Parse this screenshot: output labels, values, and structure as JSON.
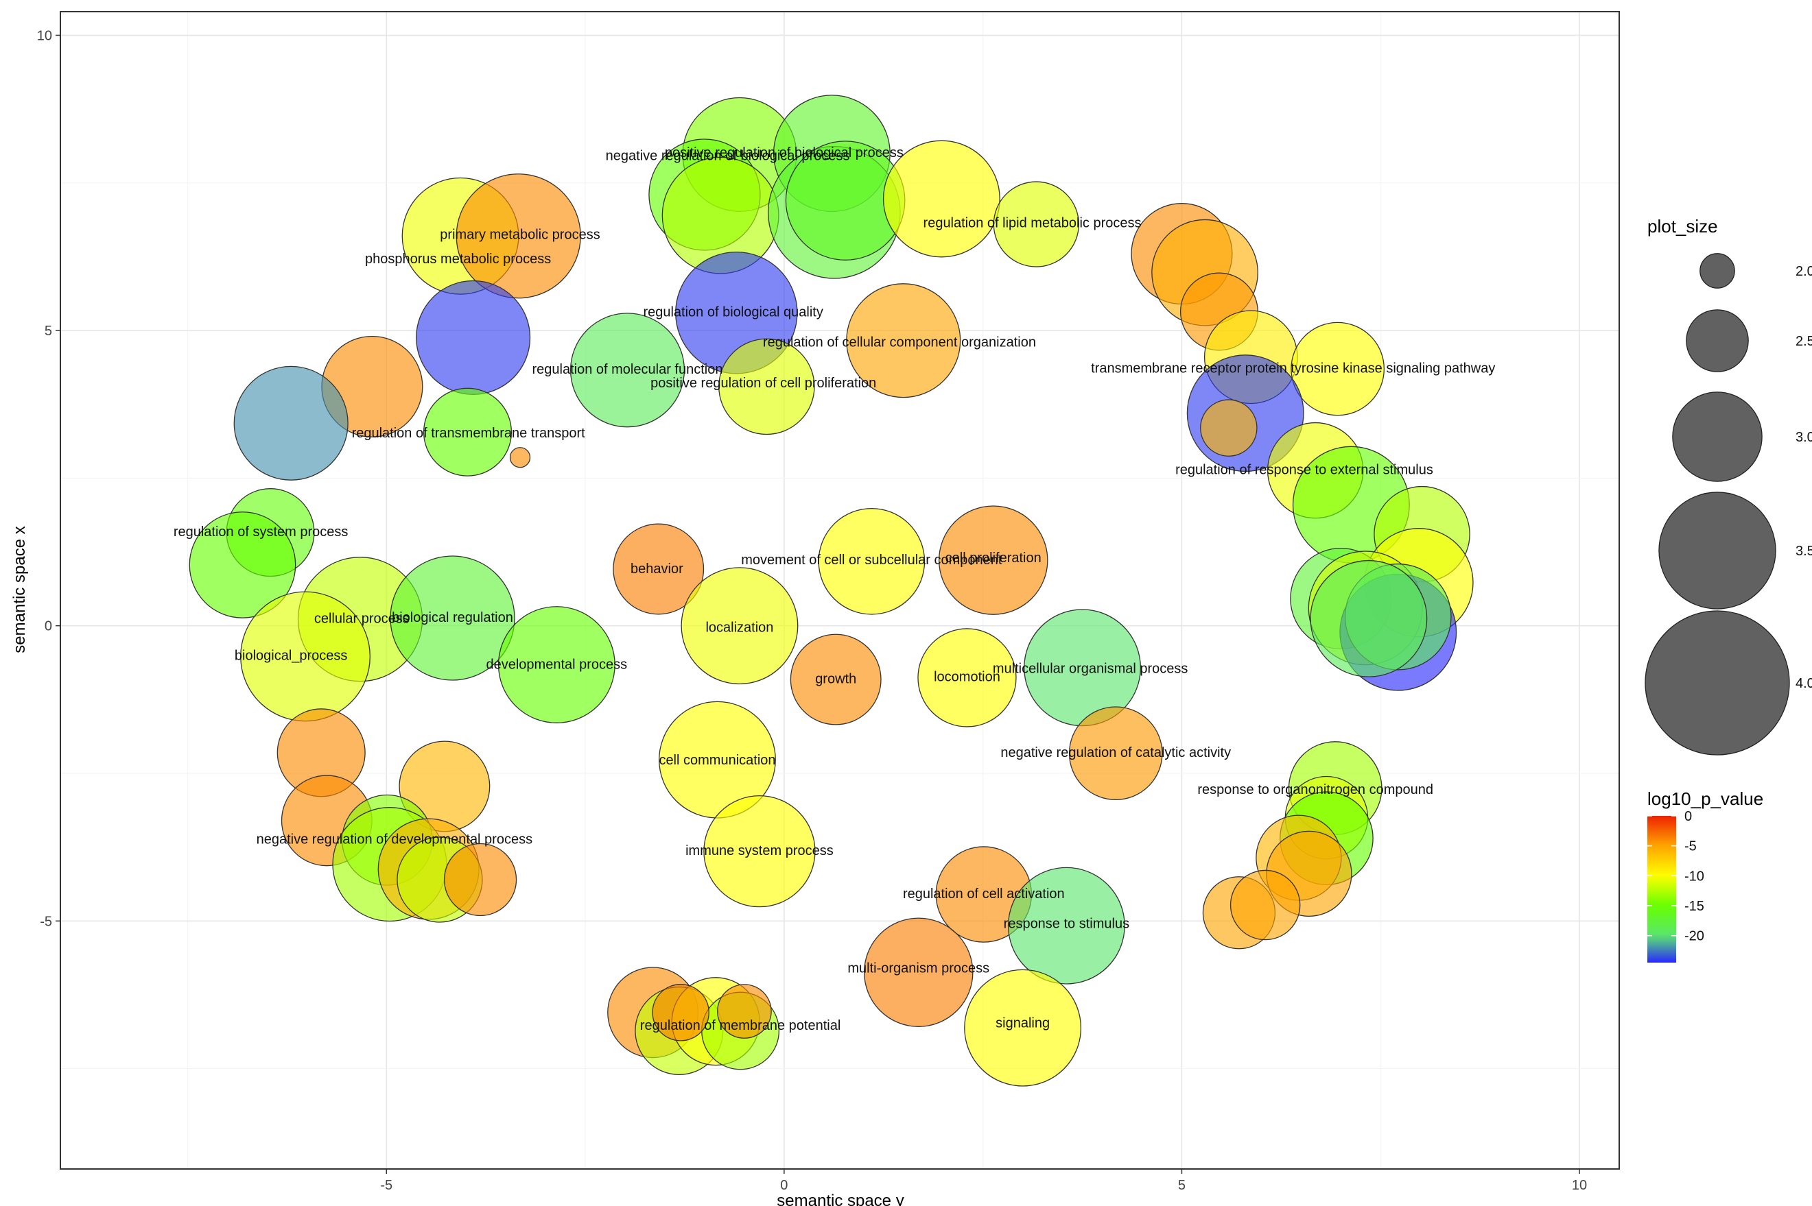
{
  "chart_data": {
    "type": "scatter",
    "xlabel": "semantic space y",
    "ylabel": "semantic space x",
    "xlim": [
      -9.1,
      10.5
    ],
    "ylim": [
      -9.2,
      10.4
    ],
    "xticks": [
      -5,
      0,
      5,
      10
    ],
    "yticks": [
      -5,
      0,
      5,
      10
    ],
    "legend_size": {
      "title": "plot_size",
      "items": [
        {
          "label": "2.0",
          "value": 2.0
        },
        {
          "label": "2.5",
          "value": 2.5
        },
        {
          "label": "3.0",
          "value": 3.0
        },
        {
          "label": "3.5",
          "value": 3.5
        },
        {
          "label": "4.0",
          "value": 4.0
        }
      ]
    },
    "legend_color": {
      "title": "log10_p_value",
      "ticks": [
        {
          "label": "0",
          "value": 0
        },
        {
          "label": "-5",
          "value": -5
        },
        {
          "label": "-10",
          "value": -10
        },
        {
          "label": "-15",
          "value": -15
        },
        {
          "label": "-20",
          "value": -20
        }
      ],
      "range": [
        -24.5,
        0
      ]
    },
    "points": [
      {
        "label": "",
        "x": -0.56,
        "y": 7.98,
        "size": 3.55,
        "p": -14
      },
      {
        "label": "",
        "x": 0.6,
        "y": 8.0,
        "size": 3.6,
        "p": -17
      },
      {
        "label": "",
        "x": -1.0,
        "y": 7.3,
        "size": 3.5,
        "p": -15
      },
      {
        "label": "",
        "x": -0.8,
        "y": 6.95,
        "size": 3.6,
        "p": -12.5
      },
      {
        "label": "",
        "x": 0.63,
        "y": 7.0,
        "size": 3.9,
        "p": -17.5
      },
      {
        "label": "",
        "x": 0.77,
        "y": 7.2,
        "size": 3.65,
        "p": -16.5
      },
      {
        "label": "",
        "x": 1.98,
        "y": 7.23,
        "size": 3.6,
        "p": -10
      },
      {
        "label": "",
        "x": 3.17,
        "y": 6.8,
        "size": 3.0,
        "p": -11
      },
      {
        "label": "",
        "x": -4.07,
        "y": 6.6,
        "size": 3.6,
        "p": -10.5
      },
      {
        "label": "",
        "x": -3.34,
        "y": 6.6,
        "size": 3.75,
        "p": -4
      },
      {
        "label": "",
        "x": -0.6,
        "y": 5.3,
        "size": 3.7,
        "p": -24
      },
      {
        "label": "",
        "x": -3.91,
        "y": 4.88,
        "size": 3.55,
        "p": -24
      },
      {
        "label": "",
        "x": 1.5,
        "y": 4.83,
        "size": 3.55,
        "p": -5
      },
      {
        "label": "",
        "x": -1.97,
        "y": 4.33,
        "size": 3.55,
        "p": -19
      },
      {
        "label": "",
        "x": -0.22,
        "y": 4.05,
        "size": 3.2,
        "p": -11
      },
      {
        "label": "",
        "x": -5.18,
        "y": 4.05,
        "size": 3.3,
        "p": -4
      },
      {
        "label": "",
        "x": -6.2,
        "y": 3.43,
        "size": 3.55,
        "p": -22
      },
      {
        "label": "",
        "x": -3.98,
        "y": 3.28,
        "size": 3.05,
        "p": -15
      },
      {
        "label": "",
        "x": -3.32,
        "y": 2.85,
        "size": 1.75,
        "p": -4
      },
      {
        "label": "",
        "x": -6.46,
        "y": 1.58,
        "size": 3.05,
        "p": -15.5
      },
      {
        "label": "",
        "x": -6.81,
        "y": 1.03,
        "size": 3.4,
        "p": -15
      },
      {
        "label": "",
        "x": -1.58,
        "y": 0.96,
        "size": 3.1,
        "p": -3.5
      },
      {
        "label": "",
        "x": 1.1,
        "y": 1.09,
        "size": 3.4,
        "p": -10
      },
      {
        "label": "",
        "x": 2.63,
        "y": 1.11,
        "size": 3.45,
        "p": -4
      },
      {
        "label": "",
        "x": -5.33,
        "y": 0.11,
        "size": 3.75,
        "p": -12
      },
      {
        "label": "",
        "x": -4.17,
        "y": 0.13,
        "size": 3.75,
        "p": -17.5
      },
      {
        "label": "",
        "x": -6.02,
        "y": -0.52,
        "size": 3.85,
        "p": -11
      },
      {
        "label": "",
        "x": -2.86,
        "y": -0.66,
        "size": 3.6,
        "p": -15
      },
      {
        "label": "",
        "x": -0.56,
        "y": 0.0,
        "size": 3.6,
        "p": -10.5
      },
      {
        "label": "",
        "x": 0.65,
        "y": -0.91,
        "size": 3.1,
        "p": -4
      },
      {
        "label": "",
        "x": 2.3,
        "y": -0.88,
        "size": 3.25,
        "p": -10
      },
      {
        "label": "",
        "x": 3.75,
        "y": -0.71,
        "size": 3.6,
        "p": -20
      },
      {
        "label": "",
        "x": 4.17,
        "y": -2.16,
        "size": 3.15,
        "p": -4.5
      },
      {
        "label": "",
        "x": -0.84,
        "y": -2.27,
        "size": 3.6,
        "p": -10
      },
      {
        "label": "",
        "x": -0.31,
        "y": -3.82,
        "size": 3.5,
        "p": -10
      },
      {
        "label": "",
        "x": 2.51,
        "y": -4.55,
        "size": 3.2,
        "p": -4
      },
      {
        "label": "",
        "x": 3.55,
        "y": -5.08,
        "size": 3.6,
        "p": -20
      },
      {
        "label": "",
        "x": 1.69,
        "y": -5.87,
        "size": 3.45,
        "p": -3.5
      },
      {
        "label": "",
        "x": 3.0,
        "y": -6.81,
        "size": 3.6,
        "p": -10
      },
      {
        "label": "",
        "x": -1.65,
        "y": -6.55,
        "size": 3.1,
        "p": -4
      },
      {
        "label": "",
        "x": -1.32,
        "y": -6.86,
        "size": 3.05,
        "p": -12
      },
      {
        "label": "",
        "x": -0.86,
        "y": -6.7,
        "size": 3.05,
        "p": -10
      },
      {
        "label": "",
        "x": -0.55,
        "y": -6.86,
        "size": 2.85,
        "p": -13
      },
      {
        "label": "",
        "x": -0.5,
        "y": -6.53,
        "size": 2.4,
        "p": -4
      },
      {
        "label": "",
        "x": -1.3,
        "y": -6.55,
        "size": 2.45,
        "p": -3.5
      },
      {
        "label": "",
        "x": -5.82,
        "y": -2.15,
        "size": 3.05,
        "p": -4
      },
      {
        "label": "",
        "x": -5.75,
        "y": -3.3,
        "size": 3.1,
        "p": -4
      },
      {
        "label": "",
        "x": -4.27,
        "y": -2.72,
        "size": 3.1,
        "p": -6
      },
      {
        "label": "",
        "x": -4.99,
        "y": -3.63,
        "size": 3.1,
        "p": -14
      },
      {
        "label": "",
        "x": -4.96,
        "y": -4.04,
        "size": 3.55,
        "p": -13
      },
      {
        "label": "",
        "x": -4.47,
        "y": -4.12,
        "size": 3.3,
        "p": -5.5
      },
      {
        "label": "",
        "x": -4.33,
        "y": -4.3,
        "size": 3.0,
        "p": -12
      },
      {
        "label": "",
        "x": -3.82,
        "y": -4.3,
        "size": 2.75,
        "p": -4
      },
      {
        "label": "",
        "x": 5.0,
        "y": 6.3,
        "size": 3.3,
        "p": -4
      },
      {
        "label": "",
        "x": 5.29,
        "y": 5.98,
        "size": 3.4,
        "p": -5.5
      },
      {
        "label": "",
        "x": 5.47,
        "y": 5.32,
        "size": 2.85,
        "p": -4.5
      },
      {
        "label": "",
        "x": 5.87,
        "y": 4.55,
        "size": 3.15,
        "p": -9
      },
      {
        "label": "",
        "x": 6.96,
        "y": 4.35,
        "size": 3.15,
        "p": -10
      },
      {
        "label": "",
        "x": 5.8,
        "y": 3.6,
        "size": 3.6,
        "p": -24
      },
      {
        "label": "",
        "x": 5.59,
        "y": 3.35,
        "size": 2.45,
        "p": -6
      },
      {
        "label": "",
        "x": 6.68,
        "y": 2.63,
        "size": 3.2,
        "p": -10.5
      },
      {
        "label": "",
        "x": 7.13,
        "y": 2.05,
        "size": 3.6,
        "p": -15
      },
      {
        "label": "",
        "x": 8.02,
        "y": 1.55,
        "size": 3.2,
        "p": -12.5
      },
      {
        "label": "",
        "x": 7.98,
        "y": 0.73,
        "size": 3.45,
        "p": -10
      },
      {
        "label": "",
        "x": 7.0,
        "y": 0.46,
        "size": 3.3,
        "p": -17.5
      },
      {
        "label": "",
        "x": 7.31,
        "y": 0.3,
        "size": 3.55,
        "p": -11.5
      },
      {
        "label": "",
        "x": 7.72,
        "y": -0.11,
        "size": 3.6,
        "p": -24.5
      },
      {
        "label": "",
        "x": 7.72,
        "y": 0.15,
        "size": 3.4,
        "p": -19
      },
      {
        "label": "",
        "x": 7.35,
        "y": 0.12,
        "size": 3.6,
        "p": -19
      },
      {
        "label": "",
        "x": 6.93,
        "y": -2.75,
        "size": 3.15,
        "p": -13
      },
      {
        "label": "",
        "x": 6.82,
        "y": -3.25,
        "size": 2.95,
        "p": -11
      },
      {
        "label": "",
        "x": 6.82,
        "y": -3.6,
        "size": 3.15,
        "p": -15
      },
      {
        "label": "",
        "x": 6.47,
        "y": -3.93,
        "size": 3.0,
        "p": -6
      },
      {
        "label": "",
        "x": 6.6,
        "y": -4.2,
        "size": 3.0,
        "p": -5
      },
      {
        "label": "",
        "x": 5.72,
        "y": -4.86,
        "size": 2.75,
        "p": -5
      },
      {
        "label": "",
        "x": 6.05,
        "y": -4.73,
        "size": 2.7,
        "p": -5
      }
    ],
    "labels": [
      {
        "text": "positive regulation of biological process",
        "x": 0.0,
        "y": 8.0
      },
      {
        "text": "negative regulation of biological process",
        "x": -0.71,
        "y": 7.95
      },
      {
        "text": "regulation of lipid metabolic process",
        "x": 3.12,
        "y": 6.81
      },
      {
        "text": "primary metabolic process",
        "x": -3.32,
        "y": 6.61
      },
      {
        "text": "phosphorus metabolic process",
        "x": -4.1,
        "y": 6.2
      },
      {
        "text": "regulation of biological quality",
        "x": -0.64,
        "y": 5.3
      },
      {
        "text": "regulation of cellular component organization",
        "x": 1.45,
        "y": 4.79
      },
      {
        "text": "regulation of molecular function",
        "x": -1.97,
        "y": 4.33
      },
      {
        "text": "positive regulation of cell proliferation",
        "x": -0.26,
        "y": 4.1
      },
      {
        "text": "regulation of transmembrane transport",
        "x": -3.97,
        "y": 3.25
      },
      {
        "text": "regulation of system process",
        "x": -6.58,
        "y": 1.58
      },
      {
        "text": "behavior",
        "x": -1.6,
        "y": 0.95
      },
      {
        "text": "movement of cell or subcellular component",
        "x": 1.1,
        "y": 1.1
      },
      {
        "text": "cell proliferation",
        "x": 2.63,
        "y": 1.14
      },
      {
        "text": "cellular process",
        "x": -5.31,
        "y": 0.11
      },
      {
        "text": "biological regulation",
        "x": -4.17,
        "y": 0.13
      },
      {
        "text": "biological_process",
        "x": -6.2,
        "y": -0.52
      },
      {
        "text": "developmental process",
        "x": -2.86,
        "y": -0.67
      },
      {
        "text": "localization",
        "x": -0.56,
        "y": -0.04
      },
      {
        "text": "growth",
        "x": 0.65,
        "y": -0.91
      },
      {
        "text": "locomotion",
        "x": 2.3,
        "y": -0.88
      },
      {
        "text": "multicellular organismal process",
        "x": 3.85,
        "y": -0.74
      },
      {
        "text": "negative regulation of catalytic activity",
        "x": 4.17,
        "y": -2.16
      },
      {
        "text": "cell communication",
        "x": -0.84,
        "y": -2.29
      },
      {
        "text": "immune system process",
        "x": -0.31,
        "y": -3.82
      },
      {
        "text": "regulation of cell activation",
        "x": 2.51,
        "y": -4.55
      },
      {
        "text": "response to stimulus",
        "x": 3.55,
        "y": -5.06
      },
      {
        "text": "multi-organism process",
        "x": 1.69,
        "y": -5.81
      },
      {
        "text": "signaling",
        "x": 3.0,
        "y": -6.74
      },
      {
        "text": "regulation of membrane potential",
        "x": -0.55,
        "y": -6.78
      },
      {
        "text": "negative regulation of developmental process",
        "x": -4.9,
        "y": -3.63
      },
      {
        "text": "transmembrane receptor protein tyrosine kinase signaling pathway",
        "x": 6.4,
        "y": 4.35
      },
      {
        "text": "regulation of response to external stimulus",
        "x": 6.54,
        "y": 2.63
      },
      {
        "text": "response to organonitrogen compound",
        "x": 6.68,
        "y": -2.79
      }
    ]
  }
}
